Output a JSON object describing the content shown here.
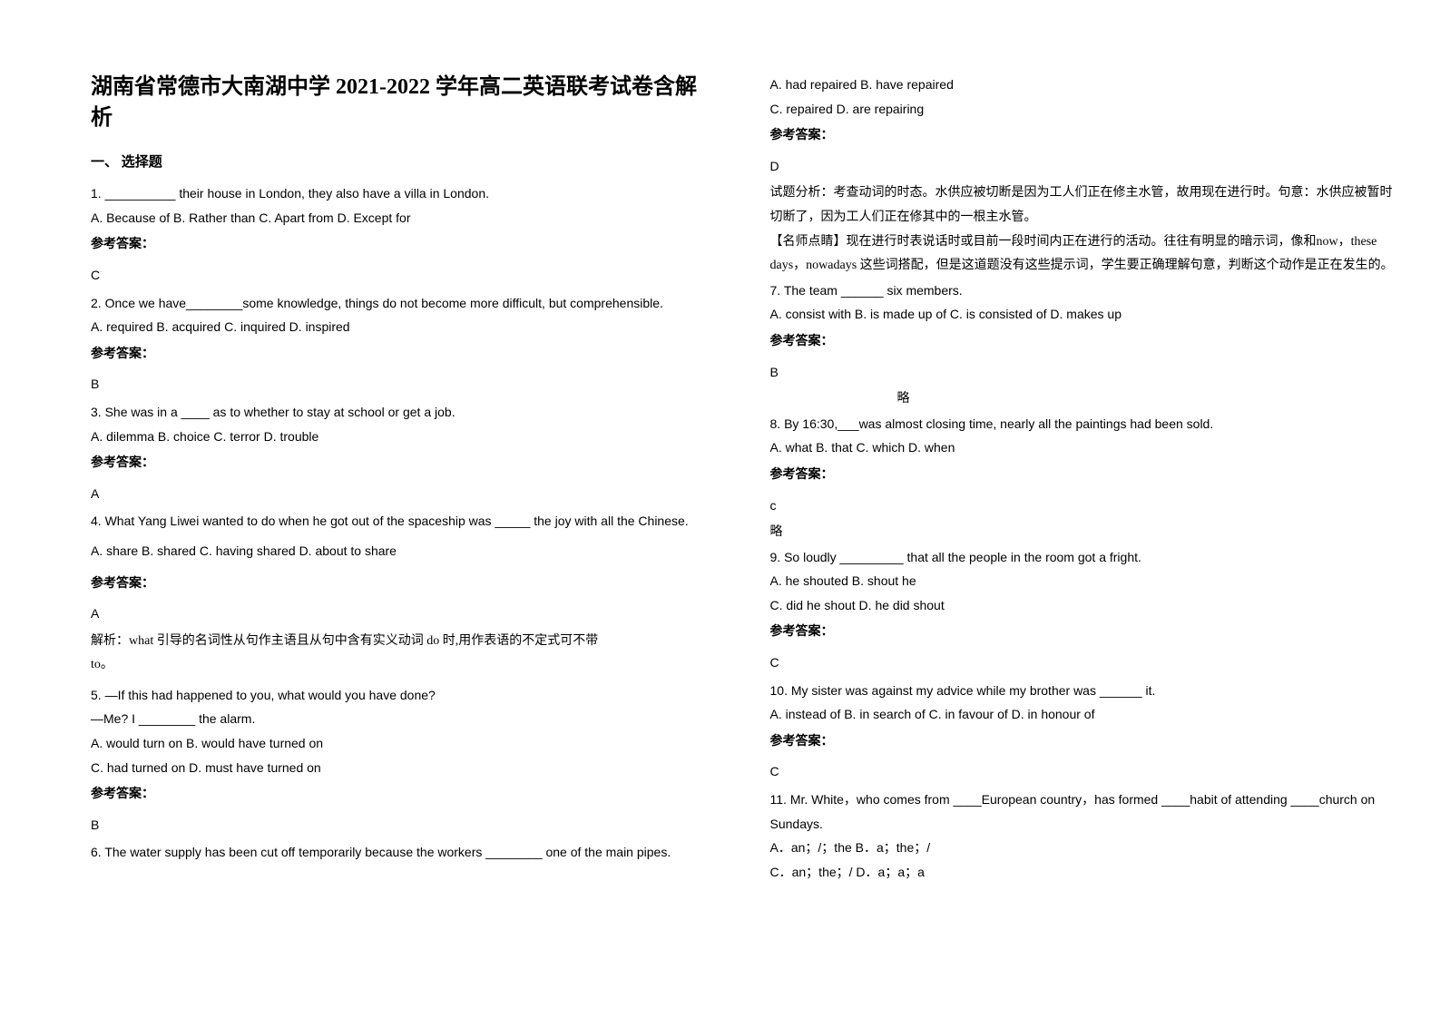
{
  "title": "湖南省常德市大南湖中学 2021-2022 学年高二英语联考试卷含解析",
  "section1": "一、 选择题",
  "font": {
    "title_size": 24,
    "body_size": 14,
    "line_height": 1.9
  },
  "colors": {
    "text": "#000000",
    "bg": "#ffffff"
  },
  "left": [
    {
      "t": "q",
      "v": "1. __________ their house in London, they also have  a villa in London."
    },
    {
      "t": "q",
      "v": " A. Because of                         B. Rather than                           C. Apart from                          D. Except for"
    },
    {
      "t": "ref",
      "v": "参考答案："
    },
    {
      "t": "ans",
      "v": "C"
    },
    {
      "t": "q",
      "v": "2. Once we have________some knowledge, things do not become more difficult, but comprehensible."
    },
    {
      "t": "q",
      "v": "A. required     B. acquired    C. inquired           D. inspired"
    },
    {
      "t": "ref",
      "v": "参考答案："
    },
    {
      "t": "ans",
      "v": "B"
    },
    {
      "t": "q",
      "v": "3. She was in a ____ as to whether to stay at school or get a job."
    },
    {
      "t": "q",
      "v": "       A. dilemma   B. choice    C. terror  D. trouble"
    },
    {
      "t": "ref",
      "v": "参考答案："
    },
    {
      "t": "ans",
      "v": "A"
    },
    {
      "t": "q",
      "v": "4. What Yang Liwei wanted to do when he got out of the spaceship was _____ the joy with all the Chinese."
    },
    {
      "t": "gap"
    },
    {
      "t": "q",
      "v": "A. share                        B. shared          C. having shared         D. about to share"
    },
    {
      "t": "gap"
    },
    {
      "t": "ref",
      "v": "参考答案："
    },
    {
      "t": "ans",
      "v": "A"
    },
    {
      "t": "cn",
      "v": "解析：what 引导的名词性从句作主语且从句中含有实义动词 do 时,用作表语的不定式可不带"
    },
    {
      "t": "cn",
      "v": "to。"
    },
    {
      "t": "gap"
    },
    {
      "t": "q",
      "v": "5. —If this had happened to you, what would you have done?"
    },
    {
      "t": "q",
      "v": "—Me? I ________ the alarm."
    },
    {
      "t": "q",
      "v": "A. would turn on     B. would have turned on"
    },
    {
      "t": "q",
      "v": "C. had turned on      D. must have turned on"
    },
    {
      "t": "ref",
      "v": "参考答案："
    },
    {
      "t": "ans",
      "v": "B"
    },
    {
      "t": "q",
      "v": "6. The water supply has been cut off temporarily because the workers ________ one of the main pipes."
    }
  ],
  "right": [
    {
      "t": "q",
      "v": "A. had repaired     B. have repaired"
    },
    {
      "t": "q",
      "v": "C. repaired     D. are repairing"
    },
    {
      "t": "ref",
      "v": "参考答案："
    },
    {
      "t": "ans",
      "v": "D"
    },
    {
      "t": "cn",
      "v": "试题分析：考查动词的时态。水供应被切断是因为工人们正在修主水管，故用现在进行时。句意：水供应被暂时切断了，因为工人们正在修其中的一根主水管。"
    },
    {
      "t": "cn",
      "v": "【名师点睛】现在进行时表说话时或目前一段时间内正在进行的活动。往往有明显的暗示词，像和now，these days，nowadays 这些词搭配，但是这道题没有这些提示词，学生要正确理解句意，判断这个动作是正在发生的。"
    },
    {
      "t": "q",
      "v": "7. The team ______ six members."
    },
    {
      "t": "q",
      "v": "A. consist with   B. is made up of     C. is consisted of        D. makes up"
    },
    {
      "t": "ref",
      "v": "参考答案："
    },
    {
      "t": "ans",
      "v": "B"
    },
    {
      "t": "cnind",
      "v": "略"
    },
    {
      "t": "q",
      "v": "8. By 16:30,___was almost closing time, nearly all the paintings had been sold."
    },
    {
      "t": "q",
      "v": "        A. what                          B. that                                 C. which                                 D. when"
    },
    {
      "t": "ref",
      "v": "参考答案："
    },
    {
      "t": "ans",
      "v": "c"
    },
    {
      "t": "cn",
      "v": "略"
    },
    {
      "t": "q",
      "v": "9. So loudly _________ that all the people in the room got a fright."
    },
    {
      "t": "q",
      "v": "        A. he shouted                                                                                     B. shout he"
    },
    {
      "t": "q",
      "v": "        C. did he shout                                                                                 D. he did shout"
    },
    {
      "t": "ref",
      "v": "参考答案："
    },
    {
      "t": "ans",
      "v": "C"
    },
    {
      "t": "q",
      "v": "10. My sister was against my advice while my brother was ______ it."
    },
    {
      "t": "q",
      "v": "      A. instead of    B. in search of    C. in favour of    D. in honour of"
    },
    {
      "t": "ref",
      "v": "参考答案："
    },
    {
      "t": "ans",
      "v": "C"
    },
    {
      "t": "q",
      "v": "11. Mr. White，who comes from ____European country，has formed ____habit of attending ____church on Sundays."
    },
    {
      "t": "q",
      "v": "A．an；/；the B．a；the；/"
    },
    {
      "t": "q",
      "v": "C．an；the；/ D．a；a；a"
    }
  ]
}
